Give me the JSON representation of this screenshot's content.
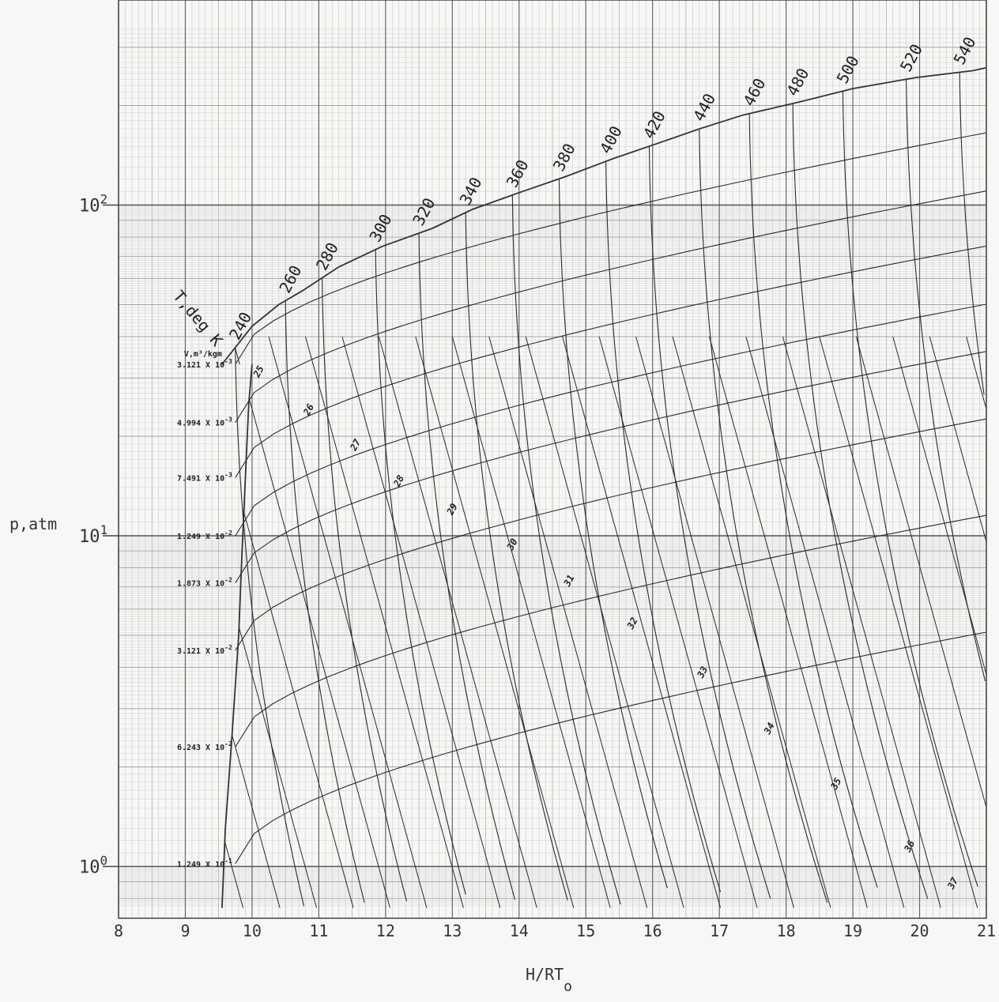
{
  "chart_data": {
    "type": "line",
    "xlabel": "H/RT",
    "xlabel_sub": "o",
    "ylabel": "p,atm",
    "xlim": [
      8,
      21
    ],
    "ylim": [
      0.75,
      350
    ],
    "y_scale": "log",
    "grid": true,
    "x_ticks": [
      "8",
      "9",
      "10",
      "11",
      "12",
      "13",
      "14",
      "15",
      "16",
      "17",
      "18",
      "19",
      "20",
      "21"
    ],
    "y_ticks": [
      {
        "base": "10",
        "exp": "2",
        "value": 100
      },
      {
        "base": "10",
        "exp": "1",
        "value": 10
      },
      {
        "base": "10",
        "exp": "0",
        "value": 1
      }
    ],
    "temperature_family": {
      "title": "T,deg K",
      "labels": [
        "240",
        "260",
        "280",
        "300",
        "320",
        "340",
        "360",
        "380",
        "400",
        "420",
        "440",
        "460",
        "480",
        "500",
        "520",
        "540"
      ]
    },
    "volume_family": {
      "title": "V,m³/kgm",
      "labels": [
        {
          "mant": "3.121 X 10",
          "exp": "-3"
        },
        {
          "mant": "4.994 X 10",
          "exp": "-3"
        },
        {
          "mant": "7.491 X 10",
          "exp": "-3"
        },
        {
          "mant": "1.249 X 10",
          "exp": "-2"
        },
        {
          "mant": "1.873 X 10",
          "exp": "-2"
        },
        {
          "mant": "3.121 X 10",
          "exp": "-2"
        },
        {
          "mant": "6.243 X 10",
          "exp": "-2"
        },
        {
          "mant": "1.249 X 10",
          "exp": "-1"
        }
      ]
    },
    "isentrope_labels": [
      "25",
      "26",
      "27",
      "28",
      "29",
      "30",
      "31",
      "32",
      "33",
      "34",
      "35",
      "36",
      "37"
    ]
  }
}
